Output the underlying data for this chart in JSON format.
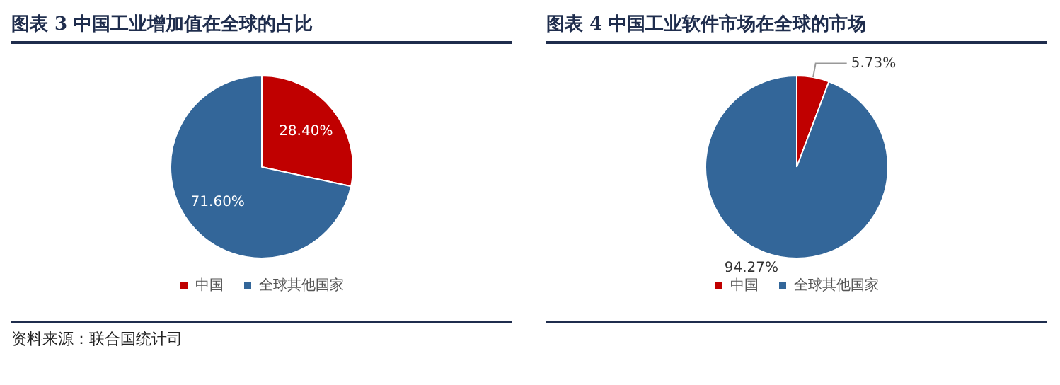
{
  "chart_data": [
    {
      "type": "pie",
      "title": "图表 3 中国工业增加值在全球的占比",
      "categories": [
        "中国",
        "全球其他国家"
      ],
      "values": [
        28.4,
        71.6
      ],
      "value_labels": [
        "28.40%",
        "71.60%"
      ],
      "colors": [
        "#c00000",
        "#336699"
      ],
      "legend": "bottom",
      "annotations": [
        "资料来源：联合国统计司"
      ]
    },
    {
      "type": "pie",
      "title": "图表 4 中国工业软件市场在全球的市场",
      "categories": [
        "中国",
        "全球其他国家"
      ],
      "values": [
        5.73,
        94.27
      ],
      "value_labels": [
        "5.73%",
        "94.27%"
      ],
      "colors": [
        "#c00000",
        "#336699"
      ],
      "legend": "bottom"
    }
  ]
}
